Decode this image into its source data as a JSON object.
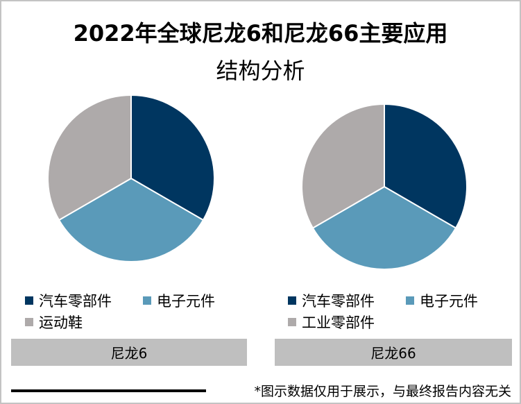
{
  "title": {
    "line1": "2022年全球尼龙6和尼龙66主要应用",
    "line2": "结构分析"
  },
  "colors": {
    "series1": "#003660",
    "series2": "#5a9ab9",
    "series3": "#aeaaaa",
    "label_bar": "#bfbfbf",
    "border": "#c3c3c3"
  },
  "charts": [
    {
      "name": "尼龙6",
      "legend": [
        {
          "label": "汽车零部件",
          "color": "#003660"
        },
        {
          "label": "电子元件",
          "color": "#5a9ab9"
        },
        {
          "label": "运动鞋",
          "color": "#aeaaaa"
        }
      ]
    },
    {
      "name": "尼龙66",
      "legend": [
        {
          "label": "汽车零部件",
          "color": "#003660"
        },
        {
          "label": "电子元件",
          "color": "#5a9ab9"
        },
        {
          "label": "工业零部件",
          "color": "#aeaaaa"
        }
      ]
    }
  ],
  "footnote": "*图示数据仅用于展示，与最终报告内容无关",
  "chart_data": [
    {
      "type": "pie",
      "title": "尼龙6",
      "categories": [
        "汽车零部件",
        "电子元件",
        "运动鞋"
      ],
      "values": [
        33.3,
        33.3,
        33.3
      ],
      "colors": [
        "#003660",
        "#5a9ab9",
        "#aeaaaa"
      ],
      "start_angle": "12 o'clock, clockwise",
      "legend_position": "bottom"
    },
    {
      "type": "pie",
      "title": "尼龙66",
      "categories": [
        "汽车零部件",
        "电子元件",
        "工业零部件"
      ],
      "values": [
        33.3,
        33.3,
        33.3
      ],
      "colors": [
        "#003660",
        "#5a9ab9",
        "#aeaaaa"
      ],
      "start_angle": "12 o'clock, clockwise",
      "legend_position": "bottom"
    }
  ]
}
